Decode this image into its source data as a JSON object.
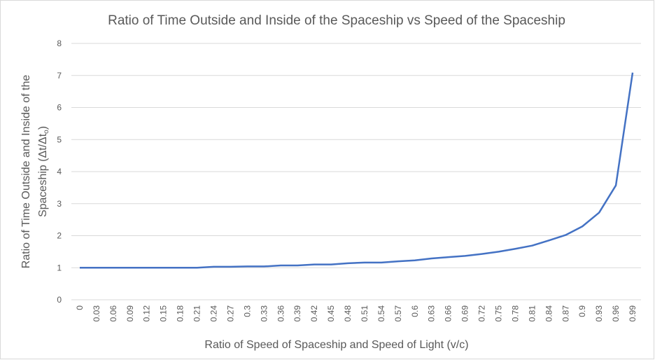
{
  "chart_data": {
    "type": "line",
    "title": "Ratio of Time Outside and Inside of the Spaceship vs Speed of the Spaceship",
    "xlabel": "Ratio of Speed of Spaceship and Speed of Light (v/c)",
    "ylabel_line1": "Ratio of Time Outside and Inside of the",
    "ylabel_line2": "Spaceship (Δt/Δt",
    "ylabel_sub": "o",
    "ylabel_close": ")",
    "ylim": [
      0,
      8
    ],
    "yticks": [
      "0",
      "1",
      "2",
      "3",
      "4",
      "5",
      "6",
      "7",
      "8"
    ],
    "grid": true,
    "legend": "none",
    "line_color": "#4472C4",
    "categories": [
      "0",
      "0.03",
      "0.06",
      "0.09",
      "0.12",
      "0.15",
      "0.18",
      "0.21",
      "0.24",
      "0.27",
      "0.3",
      "0.33",
      "0.36",
      "0.39",
      "0.42",
      "0.45",
      "0.48",
      "0.51",
      "0.54",
      "0.57",
      "0.6",
      "0.63",
      "0.66",
      "0.69",
      "0.72",
      "0.75",
      "0.78",
      "0.81",
      "0.84",
      "0.87",
      "0.9",
      "0.93",
      "0.96",
      "0.99"
    ],
    "values": [
      1.0,
      1.0,
      1.0,
      1.0,
      1.0,
      1.0,
      1.0,
      1.0,
      1.03,
      1.03,
      1.04,
      1.04,
      1.07,
      1.07,
      1.1,
      1.1,
      1.14,
      1.16,
      1.16,
      1.2,
      1.23,
      1.29,
      1.33,
      1.37,
      1.43,
      1.5,
      1.59,
      1.69,
      1.85,
      2.02,
      2.29,
      2.72,
      3.57,
      7.09
    ]
  }
}
